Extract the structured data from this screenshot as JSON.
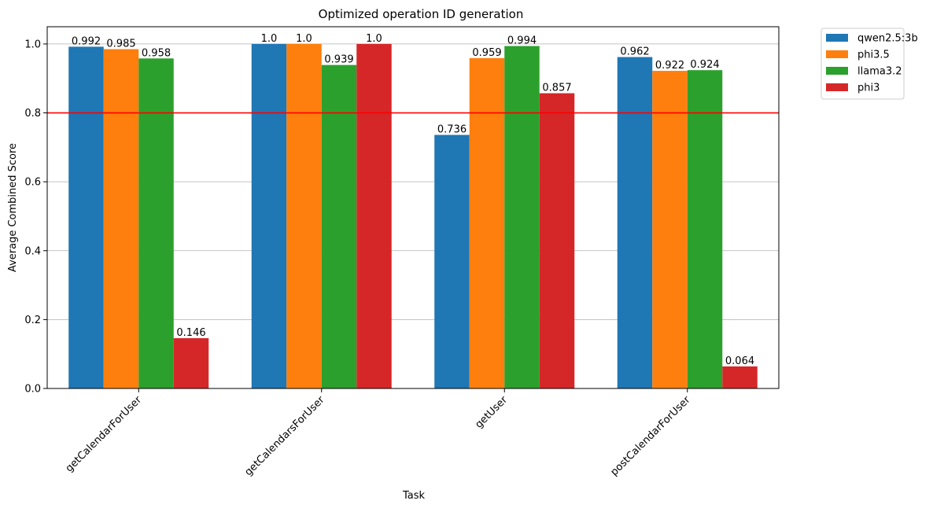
{
  "chart_data": {
    "type": "bar",
    "title": "Optimized operation ID generation",
    "xlabel": "Task",
    "ylabel": "Average Combined Score",
    "categories": [
      "getCalendarForUser",
      "getCalendarsForUser",
      "getUser",
      "postCalendarForUser"
    ],
    "series": [
      {
        "name": "qwen2.5:3b",
        "color": "#1f77b4",
        "values": [
          0.992,
          1.0,
          0.736,
          0.962
        ],
        "labels": [
          "0.992",
          "1.0",
          "0.736",
          "0.962"
        ]
      },
      {
        "name": "phi3.5",
        "color": "#ff7f0e",
        "values": [
          0.985,
          1.0,
          0.959,
          0.922
        ],
        "labels": [
          "0.985",
          "1.0",
          "0.959",
          "0.922"
        ]
      },
      {
        "name": "llama3.2",
        "color": "#2ca02c",
        "values": [
          0.958,
          0.939,
          0.994,
          0.924
        ],
        "labels": [
          "0.958",
          "0.939",
          "0.994",
          "0.924"
        ]
      },
      {
        "name": "phi3",
        "color": "#d62728",
        "values": [
          0.146,
          1.0,
          0.857,
          0.064
        ],
        "labels": [
          "0.146",
          "1.0",
          "0.857",
          "0.064"
        ]
      }
    ],
    "ylim": [
      0,
      1.05
    ],
    "yticks": [
      0.0,
      0.2,
      0.4,
      0.6,
      0.8,
      1.0
    ],
    "ytick_labels": [
      "0.0",
      "0.2",
      "0.4",
      "0.6",
      "0.8",
      "1.0"
    ],
    "reference_line": {
      "value": 0.8,
      "color": "#ff0000"
    },
    "grid": "horizontal",
    "legend_position": "outside-top-right"
  }
}
